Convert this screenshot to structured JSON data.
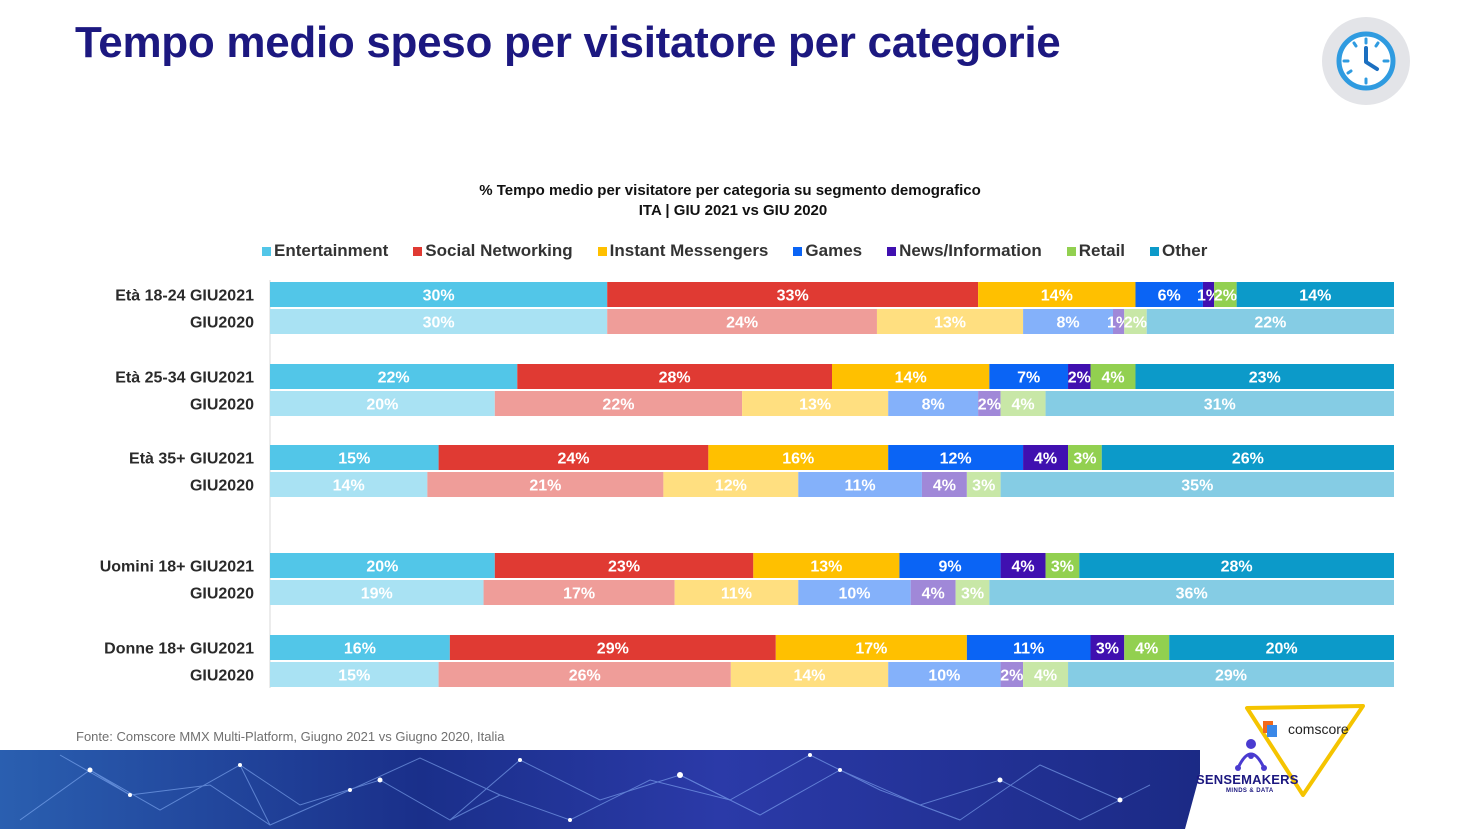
{
  "page": {
    "title": "Tempo medio speso per visitatore per categorie",
    "source_note": "Fonte: Comscore MMX Multi-Platform, Giugno 2021 vs Giugno 2020, Italia",
    "brand_comscore": "comscore",
    "brand_sensemakers": "SENSEMAKERS",
    "brand_tagline": "MINDS & DATA",
    "clock_icon": "clock-icon"
  },
  "chart_data": {
    "type": "bar",
    "orientation": "horizontal",
    "stacked": "100%",
    "title": "%  Tempo medio per visitatore per categoria su segmento demografico",
    "subtitle": "ITA | GIU 2021 vs GIU 2020",
    "legend_position": "top",
    "grid": false,
    "series": [
      {
        "name": "Entertainment",
        "color": "#52c6e8",
        "color_prev": "#a9e2f3"
      },
      {
        "name": "Social Networking",
        "color": "#e03a33",
        "color_prev": "#ef9d99"
      },
      {
        "name": "Instant Messengers",
        "color": "#ffc000",
        "color_prev": "#ffdf80"
      },
      {
        "name": "Games",
        "color": "#0a64f5",
        "color_prev": "#84b1fa"
      },
      {
        "name": "News/Information",
        "color": "#4010b0",
        "color_prev": "#a088d8"
      },
      {
        "name": "Retail",
        "color": "#92d050",
        "color_prev": "#c8e7a7"
      },
      {
        "name": "Other",
        "color": "#0c9ac9",
        "color_prev": "#85cce4"
      }
    ],
    "groups": [
      {
        "rows": [
          {
            "label": "Età 18-24 GIU2021",
            "values": [
              30,
              33,
              14,
              6,
              1,
              2,
              14
            ],
            "period": "2021"
          },
          {
            "label": "GIU2020",
            "values": [
              30,
              24,
              13,
              8,
              1,
              2,
              22
            ],
            "period": "2020"
          }
        ]
      },
      {
        "rows": [
          {
            "label": "Età 25-34 GIU2021",
            "values": [
              22,
              28,
              14,
              7,
              2,
              4,
              23
            ],
            "period": "2021"
          },
          {
            "label": "GIU2020",
            "values": [
              20,
              22,
              13,
              8,
              2,
              4,
              31
            ],
            "period": "2020"
          }
        ]
      },
      {
        "rows": [
          {
            "label": "Età 35+ GIU2021",
            "values": [
              15,
              24,
              16,
              12,
              4,
              3,
              26
            ],
            "period": "2021"
          },
          {
            "label": "GIU2020",
            "values": [
              14,
              21,
              12,
              11,
              4,
              3,
              35
            ],
            "period": "2020"
          }
        ]
      },
      {
        "rows": [
          {
            "label": "Uomini 18+ GIU2021",
            "values": [
              20,
              23,
              13,
              9,
              4,
              3,
              28
            ],
            "period": "2021"
          },
          {
            "label": "GIU2020",
            "values": [
              19,
              17,
              11,
              10,
              4,
              3,
              36
            ],
            "period": "2020"
          }
        ]
      },
      {
        "rows": [
          {
            "label": "Donne 18+ GIU2021",
            "values": [
              16,
              29,
              17,
              11,
              3,
              4,
              20
            ],
            "period": "2021"
          },
          {
            "label": "GIU2020",
            "values": [
              15,
              26,
              14,
              10,
              2,
              4,
              29
            ],
            "period": "2020"
          }
        ]
      }
    ],
    "value_suffix": "%"
  }
}
